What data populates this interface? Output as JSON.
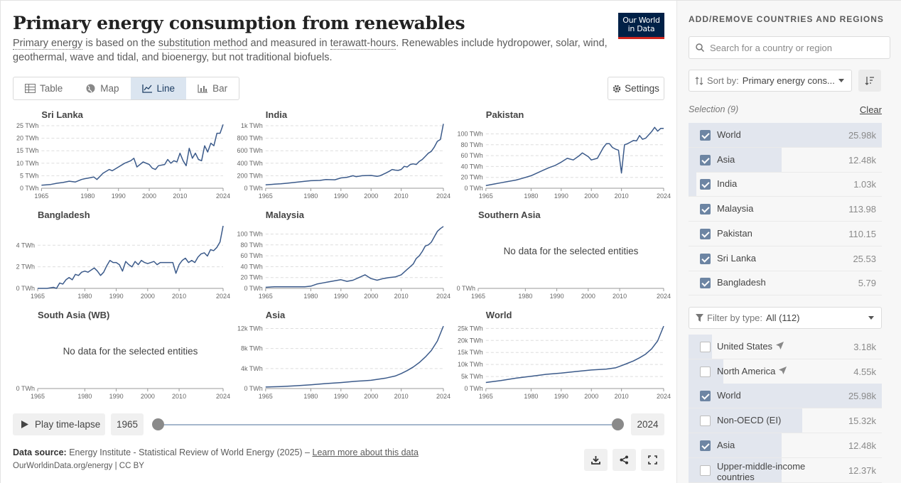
{
  "header": {
    "title": "Primary energy consumption from renewables",
    "subtitle_parts": [
      "Primary energy",
      " is based on the ",
      "substitution method",
      " and measured in ",
      "terawatt-hours",
      ". Renewables include hydropower, solar, wind, geothermal, wave and tidal, and bioenergy, but not traditional biofuels."
    ],
    "logo_line1": "Our World",
    "logo_line2": "in Data"
  },
  "tabs": [
    {
      "label": "Table",
      "icon": "table-icon",
      "active": false
    },
    {
      "label": "Map",
      "icon": "globe-icon",
      "active": false
    },
    {
      "label": "Line",
      "icon": "line-chart-icon",
      "active": true
    },
    {
      "label": "Bar",
      "icon": "bar-chart-icon",
      "active": false
    }
  ],
  "settings_label": "Settings",
  "no_data_text": "No data for the selected entities",
  "timeline": {
    "play_label": "Play time-lapse",
    "start": "1965",
    "end": "2024"
  },
  "footer": {
    "source_label": "Data source:",
    "source_text": " Energy Institute - Statistical Review of World Energy (2025) – ",
    "learn_more": "Learn more about this data",
    "cite": "OurWorldinData.org/energy | CC BY"
  },
  "sidebar": {
    "heading": "ADD/REMOVE COUNTRIES AND REGIONS",
    "search_placeholder": "Search for a country or region",
    "sort_label": "Sort by:",
    "sort_value": "Primary energy cons...",
    "selection_label": "Selection (9)",
    "clear_label": "Clear",
    "selected": [
      {
        "name": "World",
        "value": "25.98k",
        "fraction": 1.0
      },
      {
        "name": "Asia",
        "value": "12.48k",
        "fraction": 0.48
      },
      {
        "name": "India",
        "value": "1.03k",
        "fraction": 0.04
      },
      {
        "name": "Malaysia",
        "value": "113.98",
        "fraction": 0.0
      },
      {
        "name": "Pakistan",
        "value": "110.15",
        "fraction": 0.0
      },
      {
        "name": "Sri Lanka",
        "value": "25.53",
        "fraction": 0.0
      },
      {
        "name": "Bangladesh",
        "value": "5.79",
        "fraction": 0.0
      }
    ],
    "filter_label": "Filter by type:",
    "filter_value": "All (112)",
    "all": [
      {
        "name": "United States",
        "value": "3.18k",
        "checked": false,
        "arrow": true,
        "fraction": 0.12
      },
      {
        "name": "North America",
        "value": "4.55k",
        "checked": false,
        "arrow": true,
        "fraction": 0.18
      },
      {
        "name": "World",
        "value": "25.98k",
        "checked": true,
        "arrow": false,
        "fraction": 1.0
      },
      {
        "name": "Non-OECD (EI)",
        "value": "15.32k",
        "checked": false,
        "arrow": false,
        "fraction": 0.59
      },
      {
        "name": "Asia",
        "value": "12.48k",
        "checked": true,
        "arrow": false,
        "fraction": 0.48
      },
      {
        "name": "Upper-middle-income countries",
        "value": "12.37k",
        "checked": false,
        "arrow": false,
        "fraction": 0.48
      }
    ]
  },
  "chart_data": [
    {
      "type": "line",
      "title": "Sri Lanka",
      "x_ticks": [
        1965,
        1980,
        1990,
        2000,
        2010,
        2024
      ],
      "y_ticks": [
        0,
        5,
        10,
        15,
        20,
        25
      ],
      "y_tick_labels": [
        "0 TWh",
        "5 TWh",
        "10 TWh",
        "15 TWh",
        "20 TWh",
        "25 TWh"
      ],
      "ylim": [
        0,
        25
      ],
      "xlim": [
        1965,
        2024
      ],
      "x": [
        1965,
        1968,
        1970,
        1972,
        1974,
        1976,
        1978,
        1979,
        1980,
        1982,
        1983,
        1985,
        1987,
        1988,
        1990,
        1992,
        1994,
        1995,
        1996,
        1998,
        2000,
        2001,
        2002,
        2003,
        2005,
        2006,
        2007,
        2008,
        2009,
        2010,
        2011,
        2012,
        2013,
        2014,
        2015,
        2016,
        2017,
        2018,
        2019,
        2020,
        2021,
        2022,
        2023,
        2024
      ],
      "y": [
        1.2,
        1.5,
        2.0,
        2.3,
        2.8,
        2.5,
        3.5,
        3.8,
        4.0,
        4.5,
        3.5,
        6.0,
        7.5,
        7.0,
        8.5,
        10.0,
        11.0,
        12.0,
        8.5,
        10.5,
        9.5,
        8.0,
        7.5,
        9.0,
        9.5,
        11.5,
        10.0,
        11.0,
        10.5,
        14.0,
        11.0,
        9.0,
        16.0,
        12.0,
        14.0,
        11.5,
        11.0,
        17.0,
        14.5,
        18.0,
        17.0,
        22.0,
        22.0,
        25.5
      ]
    },
    {
      "type": "line",
      "title": "India",
      "x_ticks": [
        1965,
        1980,
        1990,
        2000,
        2010,
        2024
      ],
      "y_ticks": [
        0,
        200,
        400,
        600,
        800,
        1000
      ],
      "y_tick_labels": [
        "0 TWh",
        "200 TWh",
        "400 TWh",
        "600 TWh",
        "800 TWh",
        "1k TWh"
      ],
      "ylim": [
        0,
        1000
      ],
      "xlim": [
        1965,
        2024
      ],
      "x": [
        1965,
        1968,
        1970,
        1972,
        1975,
        1978,
        1980,
        1983,
        1985,
        1988,
        1990,
        1992,
        1994,
        1995,
        1997,
        2000,
        2002,
        2003,
        2005,
        2006,
        2007,
        2008,
        2009,
        2010,
        2011,
        2012,
        2013,
        2014,
        2015,
        2016,
        2017,
        2018,
        2019,
        2020,
        2021,
        2022,
        2023,
        2024
      ],
      "y": [
        55,
        65,
        70,
        80,
        95,
        110,
        120,
        125,
        140,
        135,
        165,
        175,
        200,
        185,
        200,
        205,
        190,
        200,
        245,
        270,
        300,
        290,
        285,
        300,
        350,
        340,
        380,
        390,
        380,
        430,
        460,
        510,
        560,
        590,
        660,
        750,
        780,
        1030
      ]
    },
    {
      "type": "line",
      "title": "Pakistan",
      "x_ticks": [
        1965,
        1980,
        1990,
        2000,
        2010,
        2024
      ],
      "y_ticks": [
        0,
        20,
        40,
        60,
        80,
        100
      ],
      "y_tick_labels": [
        "0 TWh",
        "20 TWh",
        "40 TWh",
        "60 TWh",
        "80 TWh",
        "100 TWh"
      ],
      "ylim": [
        0,
        115
      ],
      "xlim": [
        1965,
        2024
      ],
      "x": [
        1965,
        1968,
        1970,
        1972,
        1975,
        1977,
        1980,
        1982,
        1984,
        1986,
        1988,
        1990,
        1992,
        1994,
        1996,
        1997,
        1999,
        2000,
        2002,
        2004,
        2005,
        2006,
        2007,
        2008,
        2009,
        2010,
        2011,
        2012,
        2013,
        2014,
        2015,
        2016,
        2017,
        2018,
        2019,
        2020,
        2021,
        2022,
        2023,
        2024
      ],
      "y": [
        5,
        8,
        10,
        12,
        15,
        18,
        23,
        28,
        33,
        38,
        42,
        48,
        55,
        52,
        60,
        65,
        58,
        52,
        55,
        75,
        82,
        82,
        75,
        72,
        70,
        28,
        80,
        82,
        85,
        88,
        87,
        97,
        90,
        92,
        98,
        104,
        112,
        105,
        110,
        110
      ]
    },
    {
      "type": "line",
      "title": "Bangladesh",
      "x_ticks": [
        1965,
        1980,
        1990,
        2000,
        2010,
        2024
      ],
      "y_ticks": [
        0,
        2,
        4
      ],
      "y_tick_labels": [
        "0 TWh",
        "2 TWh",
        "4 TWh"
      ],
      "ylim": [
        0,
        5.8
      ],
      "xlim": [
        1965,
        2024
      ],
      "x": [
        1965,
        1968,
        1970,
        1971,
        1972,
        1973,
        1974,
        1975,
        1976,
        1977,
        1978,
        1979,
        1980,
        1981,
        1982,
        1983,
        1984,
        1985,
        1986,
        1987,
        1988,
        1989,
        1990,
        1991,
        1992,
        1993,
        1994,
        1995,
        1996,
        1997,
        1998,
        1999,
        2000,
        2001,
        2002,
        2003,
        2004,
        2005,
        2006,
        2007,
        2008,
        2009,
        2010,
        2011,
        2012,
        2013,
        2014,
        2015,
        2016,
        2017,
        2018,
        2019,
        2020,
        2021,
        2022,
        2023,
        2024
      ],
      "y": [
        0,
        0,
        0.1,
        0,
        0.5,
        0.4,
        0.8,
        1.0,
        0.8,
        1.3,
        1.2,
        1.5,
        1.6,
        1.5,
        1.7,
        1.9,
        1.6,
        1.2,
        1.5,
        2.1,
        2.6,
        2.4,
        2.4,
        2.2,
        1.6,
        2.5,
        2.2,
        2.0,
        2.5,
        2.2,
        2.6,
        2.4,
        2.3,
        2.4,
        2.5,
        2.2,
        2.4,
        2.4,
        2.4,
        2.4,
        2.4,
        1.4,
        2.2,
        2.6,
        2.8,
        2.4,
        2.6,
        2.4,
        2.9,
        3.2,
        3.3,
        3.0,
        3.6,
        3.5,
        3.8,
        4.3,
        5.8
      ]
    },
    {
      "type": "line",
      "title": "Malaysia",
      "x_ticks": [
        1965,
        1980,
        1990,
        2000,
        2010,
        2024
      ],
      "y_ticks": [
        0,
        20,
        40,
        60,
        80,
        100
      ],
      "y_tick_labels": [
        "0 TWh",
        "20 TWh",
        "40 TWh",
        "60 TWh",
        "80 TWh",
        "100 TWh"
      ],
      "ylim": [
        0,
        115
      ],
      "xlim": [
        1965,
        2024
      ],
      "x": [
        1965,
        1968,
        1970,
        1973,
        1975,
        1978,
        1980,
        1982,
        1984,
        1986,
        1988,
        1990,
        1992,
        1994,
        1996,
        1998,
        2000,
        2002,
        2004,
        2006,
        2008,
        2010,
        2012,
        2013,
        2014,
        2015,
        2016,
        2017,
        2018,
        2019,
        2020,
        2021,
        2022,
        2023,
        2024
      ],
      "y": [
        2,
        3,
        3,
        3,
        3,
        3,
        4,
        8,
        10,
        12,
        14,
        16,
        13,
        15,
        20,
        25,
        18,
        15,
        18,
        20,
        21,
        25,
        35,
        40,
        45,
        55,
        60,
        68,
        78,
        80,
        85,
        95,
        105,
        110,
        114
      ]
    },
    {
      "type": "line",
      "title": "Southern Asia",
      "x_ticks": [
        1965,
        1980,
        1990,
        2000,
        2010,
        2024
      ],
      "y_ticks": [
        0
      ],
      "y_tick_labels": [
        "0 TWh"
      ],
      "ylim": [
        0,
        1
      ],
      "xlim": [
        1965,
        2024
      ],
      "x": [],
      "y": []
    },
    {
      "type": "line",
      "title": "South Asia (WB)",
      "x_ticks": [
        1965,
        1980,
        1990,
        2000,
        2010,
        2024
      ],
      "y_ticks": [
        0
      ],
      "y_tick_labels": [
        "0 TWh"
      ],
      "ylim": [
        0,
        1
      ],
      "xlim": [
        1965,
        2024
      ],
      "x": [],
      "y": []
    },
    {
      "type": "line",
      "title": "Asia",
      "x_ticks": [
        1965,
        1980,
        1990,
        2000,
        2010,
        2024
      ],
      "y_ticks": [
        0,
        4000,
        8000,
        12000
      ],
      "y_tick_labels": [
        "0 TWh",
        "4k TWh",
        "8k TWh",
        "12k TWh"
      ],
      "ylim": [
        0,
        12500
      ],
      "xlim": [
        1965,
        2024
      ],
      "x": [
        1965,
        1970,
        1975,
        1980,
        1985,
        1990,
        1995,
        2000,
        2005,
        2008,
        2010,
        2012,
        2014,
        2016,
        2018,
        2020,
        2022,
        2024
      ],
      "y": [
        300,
        400,
        550,
        750,
        1000,
        1200,
        1450,
        1650,
        2100,
        2500,
        3000,
        3600,
        4300,
        5200,
        6300,
        7600,
        9500,
        12480
      ]
    },
    {
      "type": "line",
      "title": "World",
      "x_ticks": [
        1965,
        1980,
        1990,
        2000,
        2010,
        2024
      ],
      "y_ticks": [
        0,
        5000,
        10000,
        15000,
        20000,
        25000
      ],
      "y_tick_labels": [
        "0 TWh",
        "5k TWh",
        "10k TWh",
        "15k TWh",
        "20k TWh",
        "25k TWh"
      ],
      "ylim": [
        0,
        26000
      ],
      "xlim": [
        1965,
        2024
      ],
      "x": [
        1965,
        1970,
        1975,
        1980,
        1985,
        1990,
        1995,
        2000,
        2005,
        2008,
        2010,
        2012,
        2014,
        2016,
        2018,
        2020,
        2022,
        2024
      ],
      "y": [
        2500,
        3300,
        4300,
        5100,
        5900,
        6400,
        7100,
        7700,
        8100,
        8600,
        9500,
        10500,
        11500,
        12800,
        14300,
        16500,
        19800,
        25980
      ]
    }
  ]
}
